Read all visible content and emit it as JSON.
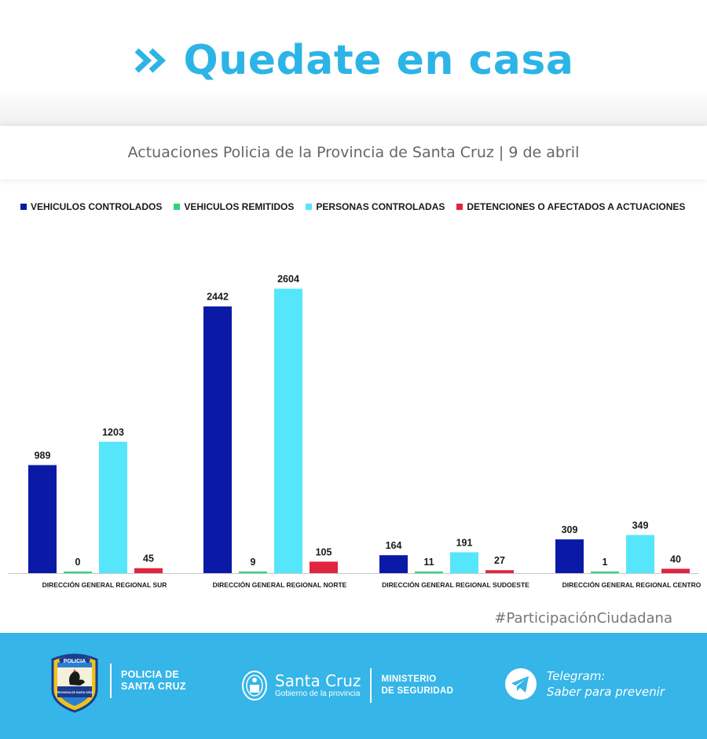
{
  "header": {
    "title": "Quedate en casa",
    "chevron_icon": "double-chevron-right",
    "accent_color": "#2cb4e6"
  },
  "subtitle": "Actuaciones Policia de la Provincia de Santa Cruz | 9 de abril",
  "chart_data": {
    "type": "bar",
    "title": "",
    "xlabel": "",
    "ylabel": "",
    "ylim": [
      0,
      2800
    ],
    "grid": false,
    "legend_position": "top",
    "categories": [
      "DIRECCIÓN GENERAL REGIONAL SUR",
      "DIRECCIÓN GENERAL REGIONAL NORTE",
      "DIRECCIÓN GENERAL REGIONAL SUDOESTE",
      "DIRECCIÓN GENERAL REGIONAL CENTRO"
    ],
    "series": [
      {
        "name": "VEHICULOS CONTROLADOS",
        "color": "#0a1aa6",
        "values": [
          989,
          2442,
          164,
          309
        ]
      },
      {
        "name": "VEHICULOS REMITIDOS",
        "color": "#2ed47a",
        "values": [
          0,
          9,
          11,
          1
        ]
      },
      {
        "name": "PERSONAS CONTROLADAS",
        "color": "#56e6fb",
        "values": [
          1203,
          2604,
          191,
          349
        ]
      },
      {
        "name": "DETENCIONES O AFECTADOS A ACTUACIONES",
        "color": "#e0253f",
        "values": [
          45,
          105,
          27,
          40
        ]
      }
    ]
  },
  "hashtag": "#ParticipaciónCiudadana",
  "footer": {
    "background": "#35b5e8",
    "police": {
      "line1": "POLICIA DE",
      "line2": "SANTA CRUZ",
      "badge_icon": "police-badge",
      "badge_top_text": "POLICIA",
      "badge_bottom_text": "PROVINCIA DE SANTA CRUZ"
    },
    "government": {
      "name": "Santa Cruz",
      "sub": "Gobierno de la provincia",
      "ministry_line1": "MINISTERIO",
      "ministry_line2": "DE SEGURIDAD",
      "emblem_icon": "provincial-emblem"
    },
    "telegram": {
      "line1": "Telegram:",
      "line2": "Saber para prevenir",
      "icon": "telegram-icon"
    }
  }
}
